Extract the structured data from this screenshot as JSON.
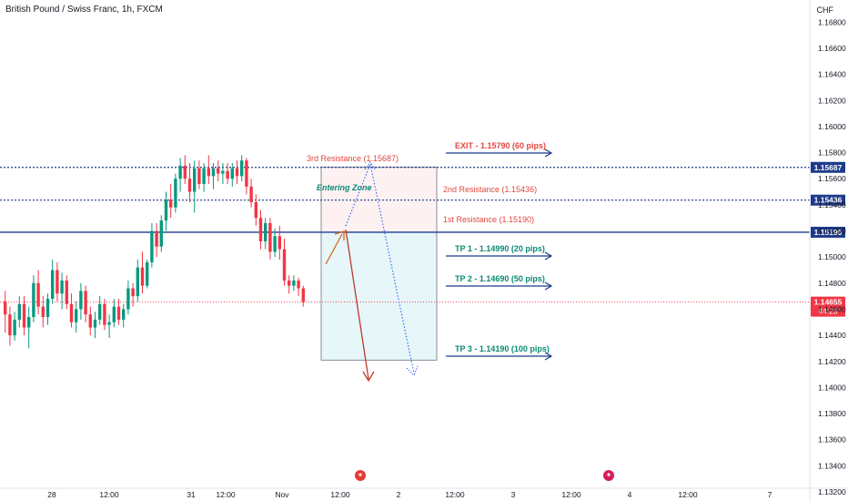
{
  "header": {
    "title": "British Pound / Swiss Franc, 1h, FXCM",
    "currency": "CHF"
  },
  "chart_data": {
    "type": "candlestick",
    "ylim": [
      1.132,
      1.169
    ],
    "y_ticks": [
      "1.16800",
      "1.16600",
      "1.16400",
      "1.16200",
      "1.16000",
      "1.15800",
      "1.15600",
      "1.15400",
      "1.15200",
      "1.15000",
      "1.14800",
      "1.14600",
      "1.14400",
      "1.14200",
      "1.14000",
      "1.13800",
      "1.13600",
      "1.13400",
      "1.13200"
    ],
    "x_ticks": [
      "28",
      "12:00",
      "31",
      "12:00",
      "Nov",
      "12:00",
      "2",
      "12:00",
      "3",
      "12:00",
      "4",
      "12:00",
      "7"
    ],
    "candles": [
      {
        "o": 1.1466,
        "h": 1.1474,
        "l": 1.1442,
        "c": 1.1456
      },
      {
        "o": 1.1456,
        "h": 1.1462,
        "l": 1.1432,
        "c": 1.144
      },
      {
        "o": 1.144,
        "h": 1.1458,
        "l": 1.1436,
        "c": 1.1452
      },
      {
        "o": 1.1452,
        "h": 1.147,
        "l": 1.1446,
        "c": 1.1464
      },
      {
        "o": 1.1464,
        "h": 1.147,
        "l": 1.144,
        "c": 1.1446
      },
      {
        "o": 1.1446,
        "h": 1.1462,
        "l": 1.143,
        "c": 1.1454
      },
      {
        "o": 1.1454,
        "h": 1.1486,
        "l": 1.145,
        "c": 1.148
      },
      {
        "o": 1.148,
        "h": 1.149,
        "l": 1.1456,
        "c": 1.1462
      },
      {
        "o": 1.1462,
        "h": 1.147,
        "l": 1.1446,
        "c": 1.1454
      },
      {
        "o": 1.1454,
        "h": 1.1472,
        "l": 1.1448,
        "c": 1.1468
      },
      {
        "o": 1.1468,
        "h": 1.1498,
        "l": 1.1464,
        "c": 1.149
      },
      {
        "o": 1.149,
        "h": 1.1496,
        "l": 1.1466,
        "c": 1.1472
      },
      {
        "o": 1.1472,
        "h": 1.1488,
        "l": 1.146,
        "c": 1.1482
      },
      {
        "o": 1.1482,
        "h": 1.1486,
        "l": 1.146,
        "c": 1.1464
      },
      {
        "o": 1.1464,
        "h": 1.1472,
        "l": 1.1446,
        "c": 1.145
      },
      {
        "o": 1.145,
        "h": 1.1466,
        "l": 1.1442,
        "c": 1.146
      },
      {
        "o": 1.146,
        "h": 1.148,
        "l": 1.1452,
        "c": 1.1474
      },
      {
        "o": 1.1474,
        "h": 1.1478,
        "l": 1.145,
        "c": 1.1456
      },
      {
        "o": 1.1456,
        "h": 1.1462,
        "l": 1.144,
        "c": 1.1446
      },
      {
        "o": 1.1446,
        "h": 1.1458,
        "l": 1.1438,
        "c": 1.1452
      },
      {
        "o": 1.1452,
        "h": 1.147,
        "l": 1.1448,
        "c": 1.1464
      },
      {
        "o": 1.1464,
        "h": 1.1468,
        "l": 1.1444,
        "c": 1.1448
      },
      {
        "o": 1.1448,
        "h": 1.1456,
        "l": 1.1438,
        "c": 1.145
      },
      {
        "o": 1.145,
        "h": 1.1468,
        "l": 1.1446,
        "c": 1.1462
      },
      {
        "o": 1.1462,
        "h": 1.1468,
        "l": 1.1448,
        "c": 1.1452
      },
      {
        "o": 1.1452,
        "h": 1.1464,
        "l": 1.1446,
        "c": 1.146
      },
      {
        "o": 1.146,
        "h": 1.1482,
        "l": 1.1456,
        "c": 1.1476
      },
      {
        "o": 1.1476,
        "h": 1.148,
        "l": 1.1462,
        "c": 1.147
      },
      {
        "o": 1.147,
        "h": 1.1498,
        "l": 1.1466,
        "c": 1.1492
      },
      {
        "o": 1.1492,
        "h": 1.1504,
        "l": 1.1472,
        "c": 1.1478
      },
      {
        "o": 1.1478,
        "h": 1.1498,
        "l": 1.1476,
        "c": 1.1496
      },
      {
        "o": 1.1496,
        "h": 1.1526,
        "l": 1.1492,
        "c": 1.152
      },
      {
        "o": 1.152,
        "h": 1.1526,
        "l": 1.15,
        "c": 1.1508
      },
      {
        "o": 1.1508,
        "h": 1.1532,
        "l": 1.1504,
        "c": 1.1528
      },
      {
        "o": 1.1528,
        "h": 1.155,
        "l": 1.152,
        "c": 1.1544
      },
      {
        "o": 1.1544,
        "h": 1.1556,
        "l": 1.153,
        "c": 1.1538
      },
      {
        "o": 1.1538,
        "h": 1.1564,
        "l": 1.1534,
        "c": 1.156
      },
      {
        "o": 1.156,
        "h": 1.1576,
        "l": 1.155,
        "c": 1.157
      },
      {
        "o": 1.157,
        "h": 1.1578,
        "l": 1.1556,
        "c": 1.156
      },
      {
        "o": 1.156,
        "h": 1.1572,
        "l": 1.1542,
        "c": 1.155
      },
      {
        "o": 1.155,
        "h": 1.1574,
        "l": 1.1534,
        "c": 1.1568
      },
      {
        "o": 1.1568,
        "h": 1.1574,
        "l": 1.1552,
        "c": 1.1556
      },
      {
        "o": 1.1556,
        "h": 1.1572,
        "l": 1.155,
        "c": 1.1568
      },
      {
        "o": 1.1568,
        "h": 1.1578,
        "l": 1.1556,
        "c": 1.1562
      },
      {
        "o": 1.1562,
        "h": 1.1572,
        "l": 1.1552,
        "c": 1.1568
      },
      {
        "o": 1.1568,
        "h": 1.1574,
        "l": 1.1558,
        "c": 1.1564
      },
      {
        "o": 1.1564,
        "h": 1.1572,
        "l": 1.1556,
        "c": 1.1566
      },
      {
        "o": 1.1566,
        "h": 1.1572,
        "l": 1.1556,
        "c": 1.156
      },
      {
        "o": 1.156,
        "h": 1.1572,
        "l": 1.1554,
        "c": 1.1568
      },
      {
        "o": 1.1568,
        "h": 1.1574,
        "l": 1.1556,
        "c": 1.1562
      },
      {
        "o": 1.1562,
        "h": 1.1578,
        "l": 1.1558,
        "c": 1.1574
      },
      {
        "o": 1.1574,
        "h": 1.1576,
        "l": 1.1548,
        "c": 1.1554
      },
      {
        "o": 1.1554,
        "h": 1.156,
        "l": 1.1538,
        "c": 1.1542
      },
      {
        "o": 1.1542,
        "h": 1.1548,
        "l": 1.1524,
        "c": 1.153
      },
      {
        "o": 1.153,
        "h": 1.1536,
        "l": 1.1506,
        "c": 1.1512
      },
      {
        "o": 1.1512,
        "h": 1.153,
        "l": 1.1506,
        "c": 1.1526
      },
      {
        "o": 1.1526,
        "h": 1.153,
        "l": 1.1498,
        "c": 1.1504
      },
      {
        "o": 1.1504,
        "h": 1.1522,
        "l": 1.15,
        "c": 1.1516
      },
      {
        "o": 1.1516,
        "h": 1.1524,
        "l": 1.1498,
        "c": 1.1506
      },
      {
        "o": 1.1506,
        "h": 1.1514,
        "l": 1.1478,
        "c": 1.1482
      },
      {
        "o": 1.1482,
        "h": 1.1486,
        "l": 1.1472,
        "c": 1.1478
      },
      {
        "o": 1.1478,
        "h": 1.1486,
        "l": 1.1474,
        "c": 1.1482
      },
      {
        "o": 1.1482,
        "h": 1.1484,
        "l": 1.147,
        "c": 1.1476
      },
      {
        "o": 1.1476,
        "h": 1.1478,
        "l": 1.1462,
        "c": 1.14655
      }
    ],
    "horizontal_lines": [
      {
        "price": 1.15687,
        "style": "dotted",
        "color": "#1e3a8a",
        "label": "1.15687"
      },
      {
        "price": 1.15436,
        "style": "dotted",
        "color": "#1e3a8a",
        "label": "1.15436"
      },
      {
        "price": 1.1519,
        "style": "solid",
        "color": "#1e3a8a",
        "label": "1.15190"
      }
    ],
    "current_price": {
      "label": "1.14655",
      "countdown": "44:23",
      "color": "#f23645"
    },
    "annotations": {
      "res3": "3rd Resistance (1.15687)",
      "res2": "2nd Resistance (1.15436)",
      "res1": "1st Resistance (1.15190)",
      "entering_zone": "Entering Zone",
      "exit": "EXIT - 1.15790 (60 pips)",
      "tp1": "TP 1 - 1.14990 (20 pips)",
      "tp2": "TP 2 - 1.14690 (50 pips)",
      "tp3": "TP 3 - 1.14190 (100 pips)"
    },
    "position_box": {
      "top": 1.1569,
      "entry": 1.1519,
      "bottom": 1.1421
    },
    "colors": {
      "up": "#089981",
      "down": "#f23645",
      "res_text": "#e0473f",
      "tp_text": "#0b8a73",
      "line": "#1e3a8a",
      "arrow_blue": "#2962ff",
      "arrow_red": "#c0392b",
      "arrow_orange": "#d2691e"
    }
  },
  "event_icons": [
    "flag-event-icon",
    "flag-event-icon"
  ]
}
